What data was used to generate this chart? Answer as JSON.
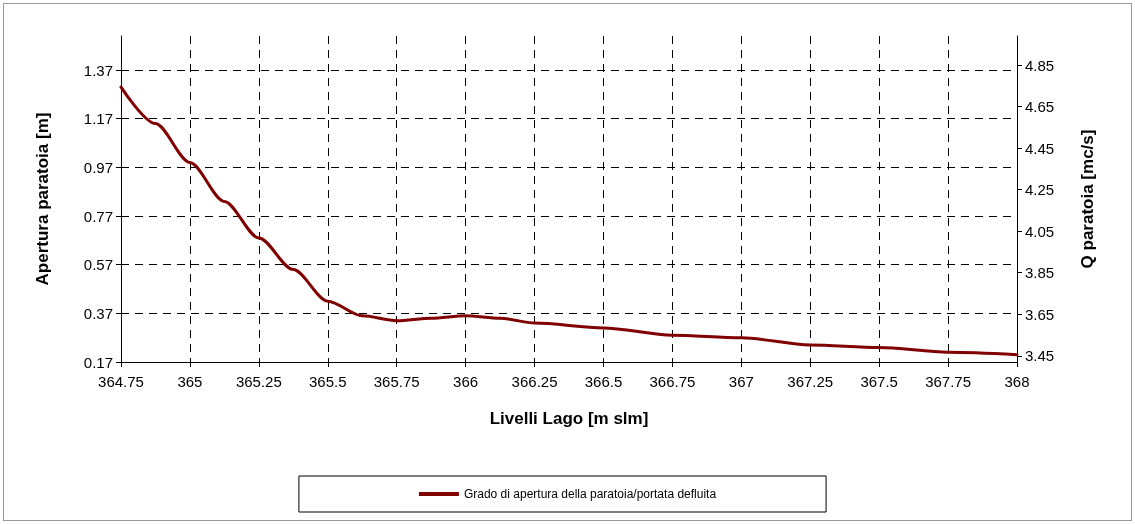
{
  "chart_data": {
    "type": "line",
    "xlabel": "Livelli Lago [m slm]",
    "ylabel": "Apertura paratoia [m]",
    "y2label": "Q paratoia [mc/s]",
    "x": [
      364.75,
      364.875,
      365,
      365.125,
      365.25,
      365.375,
      365.5,
      365.625,
      365.75,
      365.875,
      366,
      366.125,
      366.25,
      366.5,
      366.75,
      367,
      367.25,
      367.5,
      367.75,
      368
    ],
    "series": [
      {
        "name": "Grado di apertura della paratoia/portata defluita",
        "color": "#800000",
        "values": [
          1.3,
          1.15,
          0.99,
          0.83,
          0.68,
          0.55,
          0.42,
          0.36,
          0.34,
          0.35,
          0.36,
          0.35,
          0.33,
          0.31,
          0.28,
          0.27,
          0.24,
          0.23,
          0.21,
          0.2
        ]
      }
    ],
    "xlim": [
      364.75,
      368
    ],
    "xticks": [
      364.75,
      365,
      365.25,
      365.5,
      365.75,
      366,
      366.25,
      366.5,
      366.75,
      367,
      367.25,
      367.5,
      367.75,
      368
    ],
    "ylim": [
      0.17,
      1.51
    ],
    "yticks": [
      0.17,
      0.37,
      0.57,
      0.77,
      0.97,
      1.17,
      1.37
    ],
    "y2lim": [
      3.42,
      4.99
    ],
    "y2ticks": [
      3.45,
      3.65,
      3.85,
      4.05,
      4.25,
      4.45,
      4.65,
      4.85
    ],
    "grid": true,
    "legend": "bottom",
    "line_style": "solid",
    "marker": "none"
  }
}
